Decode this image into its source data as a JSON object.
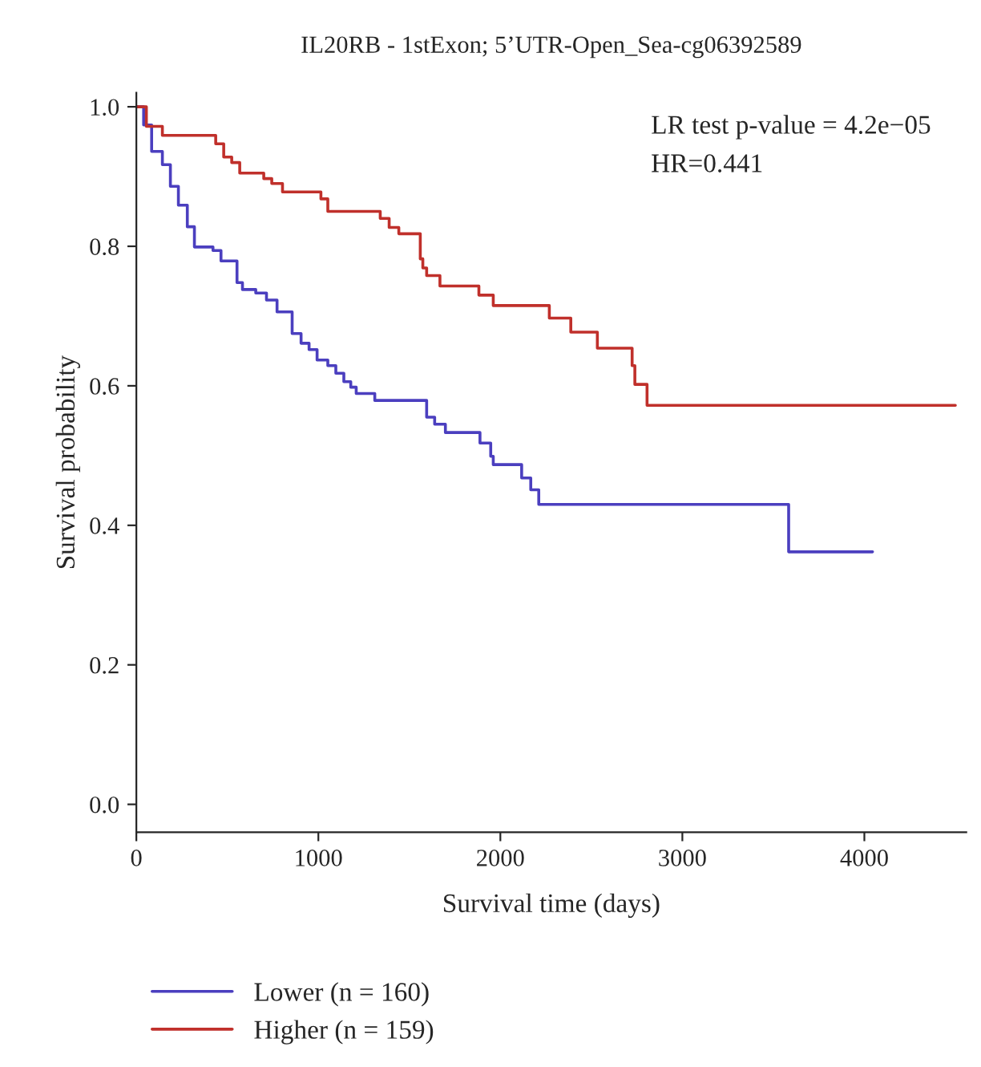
{
  "chart_data": {
    "type": "step",
    "title": "IL20RB - 1stExon; 5’UTR-Open_Sea-cg06392589",
    "xlabel": "Survival time (days)",
    "ylabel": "Survival probability",
    "xlim": [
      0,
      4560
    ],
    "xticks": [
      0,
      1000,
      2000,
      3000,
      4000
    ],
    "ylim": [
      -0.04,
      1.02
    ],
    "yticks": [
      {
        "value": 0,
        "label": "0.0"
      },
      {
        "value": 0.2,
        "label": "0.2"
      },
      {
        "value": 0.4,
        "label": "0.4"
      },
      {
        "value": 0.6,
        "label": "0.6"
      },
      {
        "value": 0.8,
        "label": "0.8"
      },
      {
        "value": 1,
        "label": "1.0"
      }
    ],
    "grid": false,
    "legend": "bottom left",
    "annotations": [
      "LR test p-value = 4.2e−05",
      "HR=0.441"
    ],
    "series": [
      {
        "name": "Lower (n = 160)",
        "color": "#4b3fbf",
        "x": [
          0,
          40,
          84,
          143,
          187,
          231,
          280,
          319,
          421,
          465,
          553,
          583,
          656,
          715,
          773,
          856,
          905,
          949,
          993,
          1052,
          1096,
          1140,
          1178,
          1208,
          1310,
          1595,
          1639,
          1698,
          1888,
          1947,
          1961,
          2117,
          2167,
          2211,
          3584,
          4045
        ],
        "values": [
          1.0,
          0.974,
          0.936,
          0.917,
          0.886,
          0.859,
          0.828,
          0.799,
          0.794,
          0.779,
          0.748,
          0.738,
          0.733,
          0.723,
          0.706,
          0.675,
          0.661,
          0.652,
          0.637,
          0.629,
          0.618,
          0.606,
          0.598,
          0.589,
          0.579,
          0.555,
          0.545,
          0.533,
          0.518,
          0.499,
          0.487,
          0.468,
          0.451,
          0.43,
          0.362,
          0.362
        ]
      },
      {
        "name": "Higher (n = 159)",
        "color": "#c0302b",
        "x": [
          0,
          55,
          143,
          436,
          480,
          524,
          568,
          700,
          744,
          803,
          1014,
          1052,
          1340,
          1389,
          1442,
          1560,
          1574,
          1595,
          1668,
          1882,
          1961,
          2269,
          2387,
          2533,
          2724,
          2739,
          2806,
          4500
        ],
        "values": [
          1.0,
          0.972,
          0.959,
          0.947,
          0.928,
          0.92,
          0.905,
          0.897,
          0.89,
          0.878,
          0.868,
          0.85,
          0.84,
          0.827,
          0.818,
          0.782,
          0.769,
          0.758,
          0.743,
          0.73,
          0.715,
          0.697,
          0.677,
          0.654,
          0.629,
          0.602,
          0.572,
          0.572
        ]
      }
    ]
  }
}
